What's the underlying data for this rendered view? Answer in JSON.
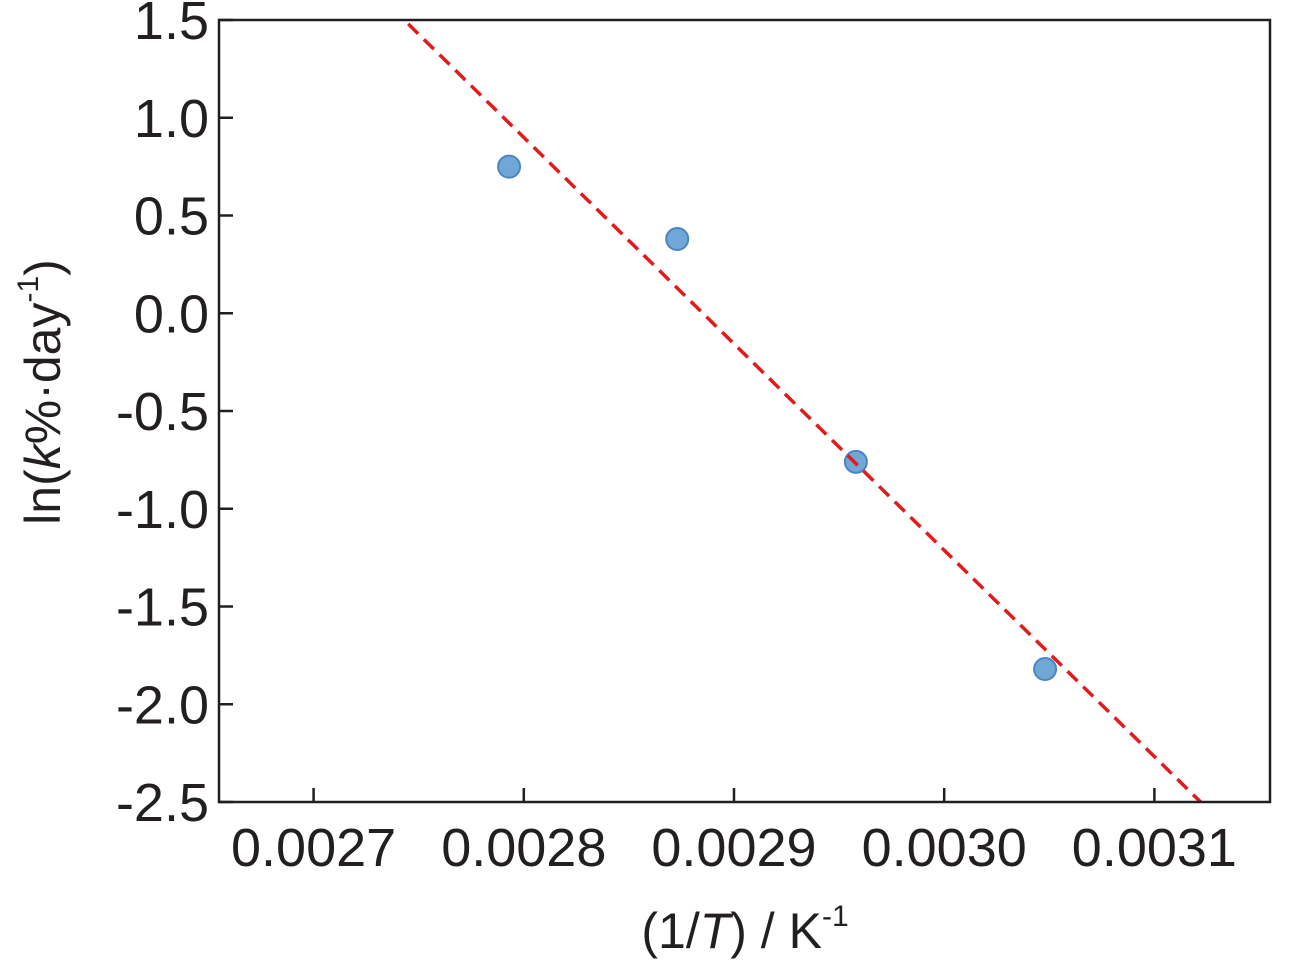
{
  "chart_data": {
    "type": "scatter",
    "title": "",
    "xlabel": {
      "pre": "(1/",
      "italic": "T",
      "post": ") / K",
      "sup": "-1"
    },
    "ylabel": {
      "pre": "ln(",
      "italic": "k",
      "post": "%·day",
      "sup": "-1",
      "close": ")"
    },
    "xlim": [
      0.002655,
      0.003155
    ],
    "ylim": [
      -2.5,
      1.5
    ],
    "xticks": [
      0.0027,
      0.0028,
      0.0029,
      0.003,
      0.0031
    ],
    "xtick_labels": [
      "0.0027",
      "0.0028",
      "0.0029",
      "0.0030",
      "0.0031"
    ],
    "yticks": [
      1.5,
      1.0,
      0.5,
      0.0,
      -0.5,
      -1.0,
      -1.5,
      -2.0,
      -2.5
    ],
    "ytick_labels": [
      "1.5",
      "1.0",
      "0.5",
      "0.0",
      "-0.5",
      "-1.0",
      "-1.5",
      "-2.0",
      "-2.5"
    ],
    "grid": false,
    "series": [
      {
        "kind": "points",
        "color": "#6fa8d6",
        "edge_color": "#4a86bf",
        "x": [
          0.002793,
          0.002873,
          0.002958,
          0.003048
        ],
        "y": [
          0.75,
          0.38,
          -0.76,
          -1.82
        ]
      },
      {
        "kind": "fit-line",
        "style": "dashed",
        "color": "#e31a1c",
        "x": [
          0.002745,
          0.003122
        ],
        "y": [
          1.48,
          -2.5
        ]
      }
    ]
  }
}
